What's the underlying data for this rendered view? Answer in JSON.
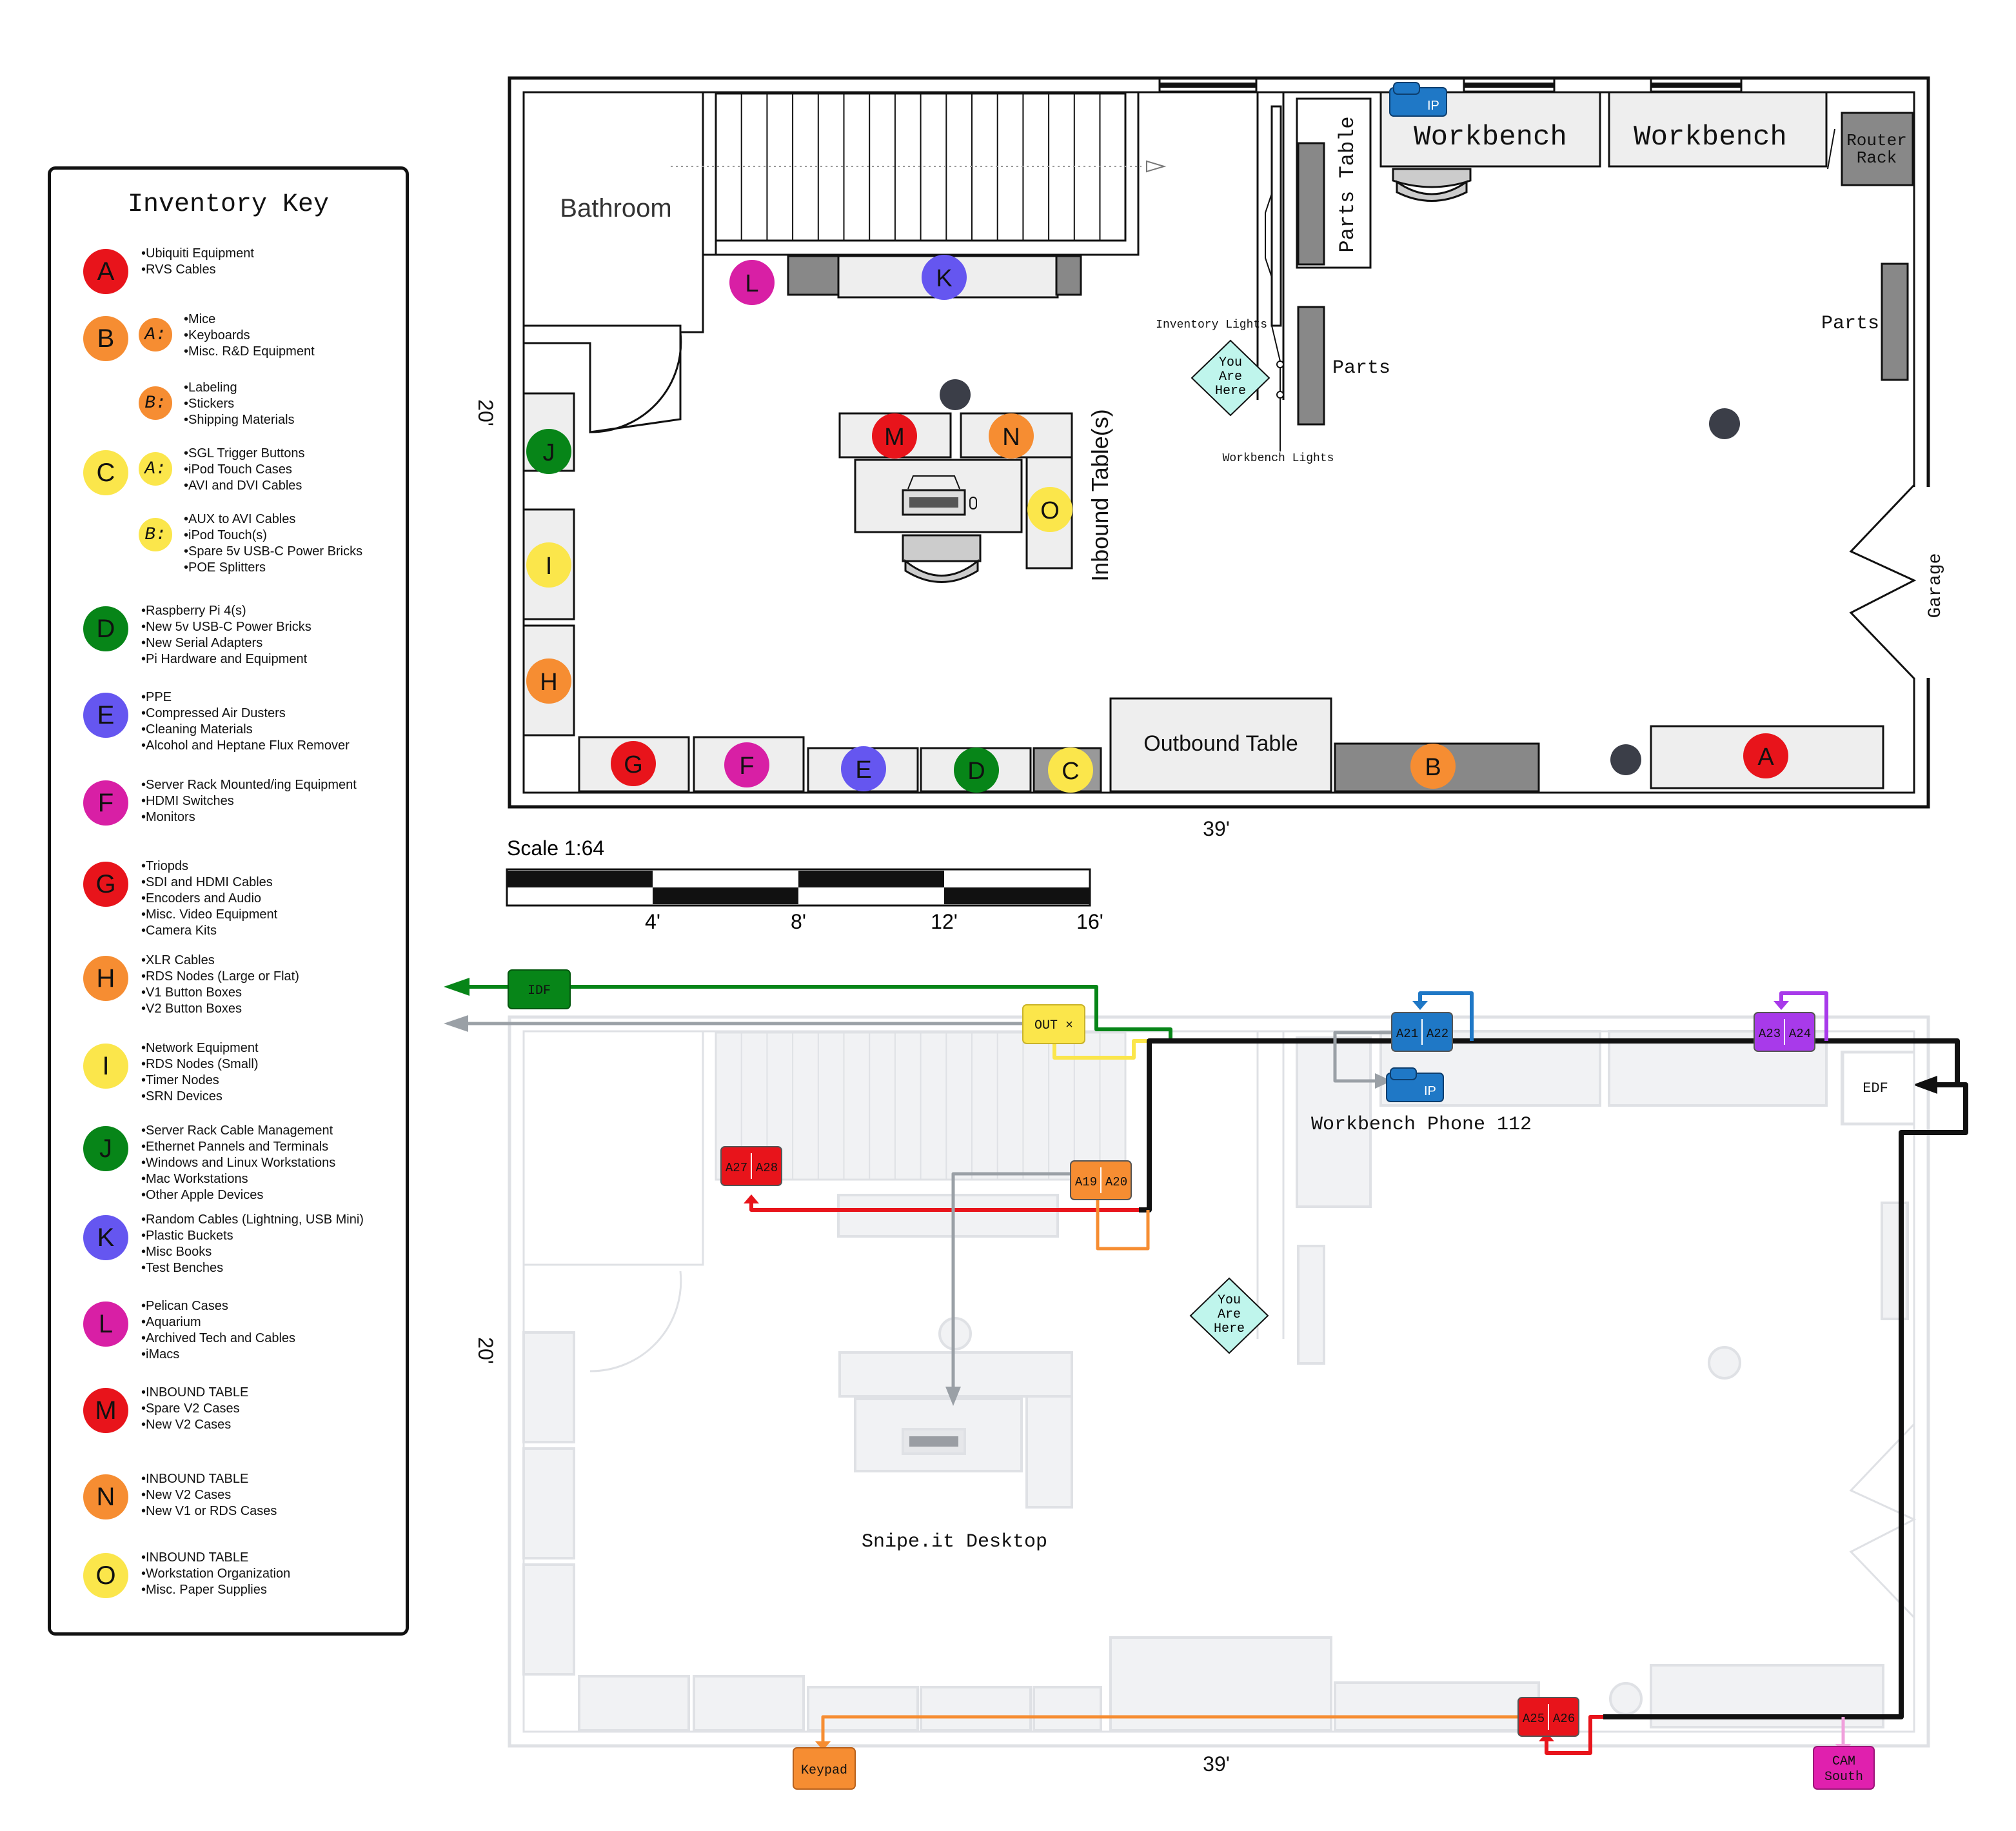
{
  "colors": {
    "red": "#e8141b",
    "orange": "#f68d32",
    "yellow": "#fbe64b",
    "green": "#078518",
    "blue": "#6556f0",
    "magenta": "#d81fa5",
    "phone_blue": "#1f78c6",
    "purple": "#a83aea",
    "cam_pink": "#e020ae",
    "ypoint": "#bff5ec"
  },
  "key": {
    "title": "Inventory Key",
    "items": [
      {
        "letter": "A",
        "color": "red",
        "bullets": [
          "Ubiquiti Equipment",
          "RVS Cables"
        ]
      },
      {
        "letter": "B",
        "color": "orange",
        "subs": [
          {
            "label": "A:",
            "bullets": [
              "Mice",
              "Keyboards",
              "Misc. R&D Equipment"
            ]
          },
          {
            "label": "B:",
            "bullets": [
              "Labeling",
              "Stickers",
              "Shipping Materials"
            ]
          }
        ]
      },
      {
        "letter": "C",
        "color": "yellow",
        "subs": [
          {
            "label": "A:",
            "bullets": [
              "SGL Trigger Buttons",
              "iPod Touch Cases",
              "AVI and DVI Cables"
            ]
          },
          {
            "label": "B:",
            "bullets": [
              "AUX to AVI Cables",
              "iPod Touch(s)",
              "Spare 5v USB-C Power Bricks",
              "POE Splitters"
            ]
          }
        ]
      },
      {
        "letter": "D",
        "color": "green",
        "bullets": [
          "Raspberry Pi 4(s)",
          "New 5v USB-C Power Bricks",
          "New Serial Adapters",
          "Pi Hardware and Equipment"
        ]
      },
      {
        "letter": "E",
        "color": "blue",
        "bullets": [
          "PPE",
          "Compressed Air Dusters",
          "Cleaning Materials",
          "Alcohol and Heptane Flux Remover"
        ]
      },
      {
        "letter": "F",
        "color": "magenta",
        "bullets": [
          "Server Rack Mounted/ing Equipment",
          "HDMI Switches",
          "Monitors"
        ]
      },
      {
        "letter": "G",
        "color": "red",
        "bullets": [
          "Triopds",
          "SDI and HDMI Cables",
          "Encoders and Audio",
          "Misc. Video Equipment",
          "Camera Kits"
        ]
      },
      {
        "letter": "H",
        "color": "orange",
        "bullets": [
          "XLR Cables",
          "RDS Nodes (Large or Flat)",
          "V1 Button Boxes",
          "V2 Button Boxes"
        ]
      },
      {
        "letter": "I",
        "color": "yellow",
        "bullets": [
          "Network Equipment",
          "RDS Nodes (Small)",
          "Timer Nodes",
          "SRN Devices"
        ]
      },
      {
        "letter": "J",
        "color": "green",
        "bullets": [
          "Server Rack Cable Management",
          "Ethernet Pannels and Terminals",
          "Windows and Linux Workstations",
          "Mac Workstations",
          "Other Apple Devices"
        ]
      },
      {
        "letter": "K",
        "color": "blue",
        "bullets": [
          "Random Cables (Lightning, USB Mini)",
          "Plastic Buckets",
          "Misc Books",
          "Test Benches"
        ]
      },
      {
        "letter": "L",
        "color": "magenta",
        "bullets": [
          "Pelican Cases",
          "Aquarium",
          "Archived Tech and Cables",
          "iMacs"
        ]
      },
      {
        "letter": "M",
        "color": "red",
        "bullets": [
          "INBOUND TABLE",
          "Spare V2 Cases",
          "New V2 Cases"
        ]
      },
      {
        "letter": "N",
        "color": "orange",
        "bullets": [
          "INBOUND TABLE",
          "New V2 Cases",
          "New V1 or RDS Cases"
        ]
      },
      {
        "letter": "O",
        "color": "yellow",
        "bullets": [
          "INBOUND TABLE",
          "Workstation Organization",
          "Misc. Paper Supplies"
        ]
      }
    ]
  },
  "floorplan": {
    "labels": {
      "bathroom": "Bathroom",
      "workbench": "Workbench",
      "router_rack_line1": "Router",
      "router_rack_line2": "Rack",
      "parts_table": "Parts Table",
      "parts": "Parts",
      "inventory_lights": "Inventory Lights",
      "workbench_lights": "Workbench Lights",
      "you_are_here": [
        "You",
        "Are",
        "Here"
      ],
      "inbound_tables": "Inbound Table(s)",
      "outbound_table": "Outbound Table",
      "garage": "Garage",
      "width_dim": "39'",
      "height_dim": "20'",
      "phone_ip": "IP"
    },
    "markers": [
      {
        "letter": "L",
        "color": "magenta"
      },
      {
        "letter": "K",
        "color": "blue"
      },
      {
        "letter": "J",
        "color": "green"
      },
      {
        "letter": "I",
        "color": "yellow"
      },
      {
        "letter": "H",
        "color": "orange"
      },
      {
        "letter": "M",
        "color": "red"
      },
      {
        "letter": "N",
        "color": "orange"
      },
      {
        "letter": "O",
        "color": "yellow"
      },
      {
        "letter": "G",
        "color": "red"
      },
      {
        "letter": "F",
        "color": "magenta"
      },
      {
        "letter": "E",
        "color": "blue"
      },
      {
        "letter": "D",
        "color": "green"
      },
      {
        "letter": "C",
        "color": "yellow"
      },
      {
        "letter": "B",
        "color": "orange"
      },
      {
        "letter": "A",
        "color": "red"
      }
    ]
  },
  "scale": {
    "title": "Scale 1:64",
    "ticks": [
      "4'",
      "8'",
      "12'",
      "16'"
    ]
  },
  "network": {
    "nodes": {
      "idf": "IDF",
      "out": "OUT ×",
      "edf": "EDF",
      "keypad": "Keypad",
      "cam_line1": "CAM",
      "cam_line2": "South"
    },
    "ports": [
      {
        "a": "A21",
        "b": "A22",
        "color": "phone_blue"
      },
      {
        "a": "A23",
        "b": "A24",
        "color": "purple"
      },
      {
        "a": "A27",
        "b": "A28",
        "color": "red"
      },
      {
        "a": "A19",
        "b": "A20",
        "color": "orange"
      },
      {
        "a": "A25",
        "b": "A26",
        "color": "red"
      }
    ],
    "devices": {
      "workbench_phone": "Workbench Phone 112",
      "snipe_desktop": "Snipe.it Desktop"
    },
    "labels": {
      "width_dim": "39'",
      "height_dim": "20'",
      "you_are_here": [
        "You",
        "Are",
        "Here"
      ]
    }
  }
}
